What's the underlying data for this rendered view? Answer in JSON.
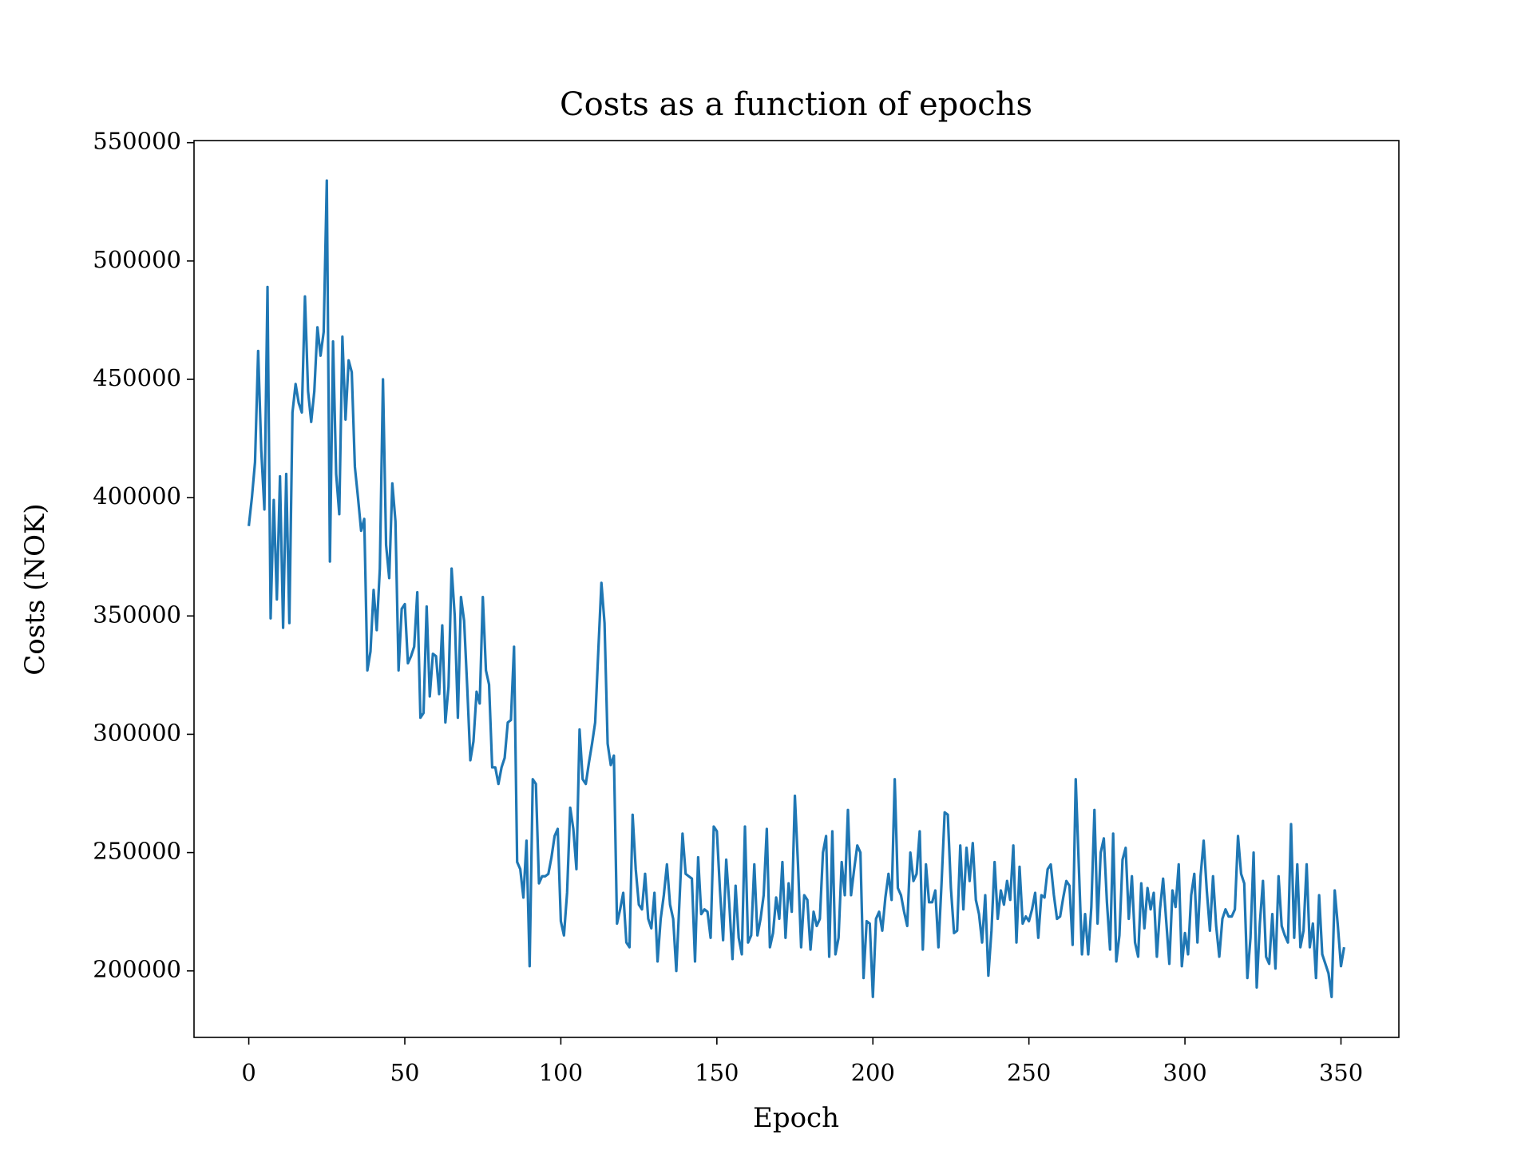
{
  "chart_data": {
    "type": "line",
    "title": "Costs as a function of epochs",
    "x_label": "Epoch",
    "y_label": "Costs (NOK)",
    "x": [
      0,
      1,
      2,
      3,
      4,
      5,
      6,
      7,
      8,
      9,
      10,
      11,
      12,
      13,
      14,
      15,
      16,
      17,
      18,
      19,
      20,
      21,
      22,
      23,
      24,
      25,
      26,
      27,
      28,
      29,
      30,
      31,
      32,
      33,
      34,
      35,
      36,
      37,
      38,
      39,
      40,
      41,
      42,
      43,
      44,
      45,
      46,
      47,
      48,
      49,
      50,
      51,
      52,
      53,
      54,
      55,
      56,
      57,
      58,
      59,
      60,
      61,
      62,
      63,
      64,
      65,
      66,
      67,
      68,
      69,
      70,
      71,
      72,
      73,
      74,
      75,
      76,
      77,
      78,
      79,
      80,
      81,
      82,
      83,
      84,
      85,
      86,
      87,
      88,
      89,
      90,
      91,
      92,
      93,
      94,
      95,
      96,
      97,
      98,
      99,
      100,
      101,
      102,
      103,
      104,
      105,
      106,
      107,
      108,
      109,
      110,
      111,
      112,
      113,
      114,
      115,
      116,
      117,
      118,
      119,
      120,
      121,
      122,
      123,
      124,
      125,
      126,
      127,
      128,
      129,
      130,
      131,
      132,
      133,
      134,
      135,
      136,
      137,
      138,
      139,
      140,
      141,
      142,
      143,
      144,
      145,
      146,
      147,
      148,
      149,
      150,
      151,
      152,
      153,
      154,
      155,
      156,
      157,
      158,
      159,
      160,
      161,
      162,
      163,
      164,
      165,
      166,
      167,
      168,
      169,
      170,
      171,
      172,
      173,
      174,
      175,
      176,
      177,
      178,
      179,
      180,
      181,
      182,
      183,
      184,
      185,
      186,
      187,
      188,
      189,
      190,
      191,
      192,
      193,
      194,
      195,
      196,
      197,
      198,
      199,
      200,
      201,
      202,
      203,
      204,
      205,
      206,
      207,
      208,
      209,
      210,
      211,
      212,
      213,
      214,
      215,
      216,
      217,
      218,
      219,
      220,
      221,
      222,
      223,
      224,
      225,
      226,
      227,
      228,
      229,
      230,
      231,
      232,
      233,
      234,
      235,
      236,
      237,
      238,
      239,
      240,
      241,
      242,
      243,
      244,
      245,
      246,
      247,
      248,
      249,
      250,
      251,
      252,
      253,
      254,
      255,
      256,
      257,
      258,
      259,
      260,
      261,
      262,
      263,
      264,
      265,
      266,
      267,
      268,
      269,
      270,
      271,
      272,
      273,
      274,
      275,
      276,
      277,
      278,
      279,
      280,
      281,
      282,
      283,
      284,
      285,
      286,
      287,
      288,
      289,
      290,
      291,
      292,
      293,
      294,
      295,
      296,
      297,
      298,
      299,
      300,
      301,
      302,
      303,
      304,
      305,
      306,
      307,
      308,
      309,
      310,
      311,
      312,
      313,
      314,
      315,
      316,
      317,
      318,
      319,
      320,
      321,
      322,
      323,
      324,
      325,
      326,
      327,
      328,
      329,
      330,
      331,
      332,
      333,
      334,
      335,
      336,
      337,
      338,
      339,
      340,
      341,
      342,
      343,
      344,
      345,
      346,
      347,
      348,
      349,
      350,
      351
    ],
    "series": [
      {
        "color": "#1f77b4",
        "values": [
          388000,
          400000,
          415000,
          462000,
          420000,
          395000,
          489000,
          349000,
          399000,
          357000,
          409000,
          345000,
          410000,
          347000,
          436000,
          448000,
          440000,
          436000,
          485000,
          445000,
          432000,
          445000,
          472000,
          460000,
          470000,
          534000,
          373000,
          466000,
          410000,
          393000,
          468000,
          433000,
          458000,
          453000,
          413000,
          400000,
          386000,
          391000,
          327000,
          335000,
          361000,
          344000,
          370000,
          450000,
          380000,
          366000,
          406000,
          390000,
          327000,
          353000,
          355000,
          330000,
          333000,
          337000,
          360000,
          307000,
          309000,
          354000,
          316000,
          334000,
          333000,
          317000,
          346000,
          305000,
          320000,
          370000,
          350000,
          307000,
          358000,
          348000,
          320000,
          289000,
          297000,
          318000,
          313000,
          358000,
          327000,
          321000,
          286000,
          286000,
          279000,
          286000,
          290000,
          305000,
          306000,
          337000,
          246000,
          243000,
          231000,
          255000,
          202000,
          281000,
          279000,
          237000,
          240000,
          240000,
          241000,
          248000,
          257000,
          260000,
          221000,
          215000,
          233000,
          269000,
          260000,
          243000,
          302000,
          281000,
          279000,
          288000,
          296000,
          305000,
          335000,
          364000,
          347000,
          296000,
          287000,
          291000,
          220000,
          226000,
          233000,
          212000,
          210000,
          266000,
          243000,
          228000,
          226000,
          241000,
          222000,
          218000,
          233000,
          204000,
          222000,
          232000,
          245000,
          228000,
          222000,
          200000,
          229000,
          258000,
          241000,
          240000,
          239000,
          204000,
          248000,
          224000,
          226000,
          225000,
          214000,
          261000,
          259000,
          234000,
          213000,
          247000,
          228000,
          205000,
          236000,
          214000,
          207000,
          261000,
          212000,
          215000,
          245000,
          215000,
          222000,
          232000,
          260000,
          210000,
          216000,
          231000,
          222000,
          246000,
          214000,
          237000,
          225000,
          274000,
          245000,
          210000,
          232000,
          230000,
          209000,
          225000,
          219000,
          222000,
          250000,
          257000,
          206000,
          259000,
          207000,
          214000,
          246000,
          232000,
          268000,
          232000,
          243000,
          253000,
          250000,
          197000,
          221000,
          220000,
          189000,
          222000,
          225000,
          217000,
          231000,
          241000,
          230000,
          281000,
          235000,
          232000,
          225000,
          219000,
          250000,
          238000,
          241000,
          259000,
          209000,
          245000,
          229000,
          229000,
          234000,
          210000,
          237000,
          267000,
          266000,
          235000,
          216000,
          217000,
          253000,
          226000,
          252000,
          238000,
          254000,
          230000,
          224000,
          212000,
          232000,
          198000,
          217000,
          246000,
          222000,
          234000,
          228000,
          238000,
          230000,
          253000,
          212000,
          244000,
          220000,
          223000,
          221000,
          226000,
          233000,
          214000,
          232000,
          231000,
          243000,
          245000,
          232000,
          222000,
          223000,
          231000,
          238000,
          236000,
          211000,
          281000,
          244000,
          207000,
          224000,
          207000,
          227000,
          268000,
          220000,
          250000,
          256000,
          229000,
          209000,
          258000,
          204000,
          215000,
          247000,
          252000,
          222000,
          240000,
          212000,
          206000,
          237000,
          218000,
          235000,
          226000,
          233000,
          206000,
          226000,
          239000,
          221000,
          203000,
          234000,
          227000,
          245000,
          202000,
          216000,
          207000,
          232000,
          241000,
          212000,
          240000,
          255000,
          234000,
          217000,
          240000,
          219000,
          206000,
          222000,
          226000,
          223000,
          223000,
          226000,
          257000,
          241000,
          237000,
          197000,
          214000,
          250000,
          193000,
          220000,
          238000,
          206000,
          203000,
          224000,
          201000,
          240000,
          219000,
          215000,
          212000,
          262000,
          214000,
          245000,
          210000,
          217000,
          245000,
          210000,
          220000,
          197000,
          232000,
          207000,
          203000,
          199000,
          189000,
          234000,
          219000,
          202000,
          210000
        ]
      }
    ],
    "xlim": [
      -17.55,
      368.55
    ],
    "ylim": [
      171900,
      550900
    ],
    "xticks": [
      0,
      50,
      100,
      150,
      200,
      250,
      300,
      350
    ],
    "yticks": [
      200000,
      250000,
      300000,
      350000,
      400000,
      450000,
      500000,
      550000
    ]
  }
}
